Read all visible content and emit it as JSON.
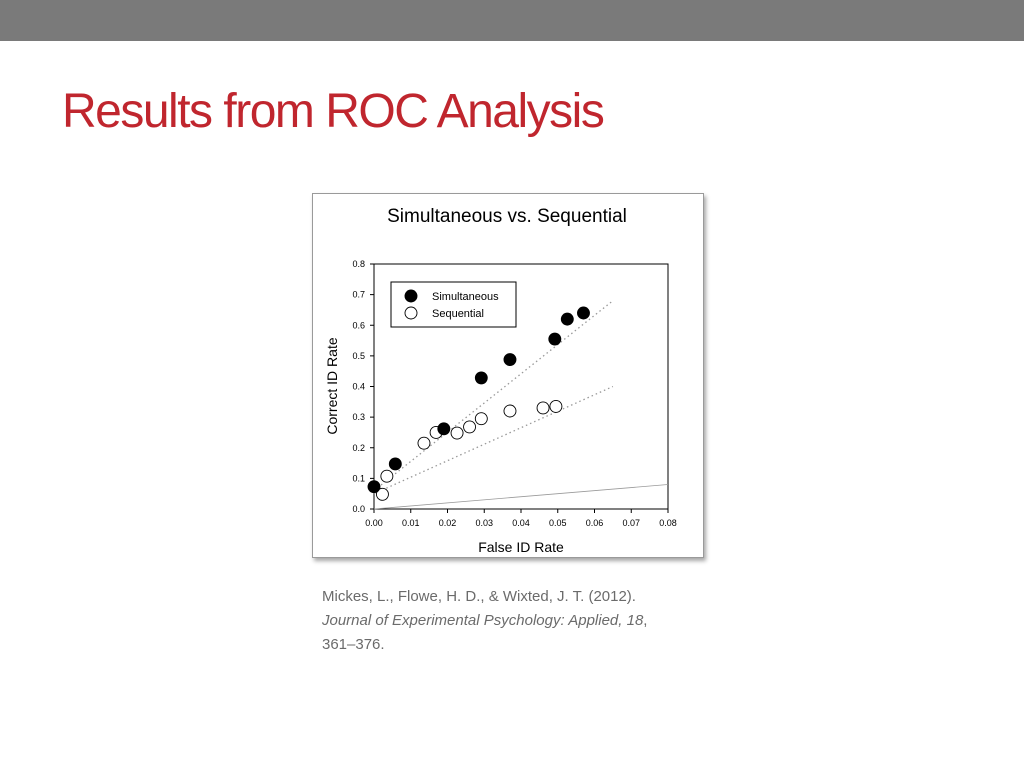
{
  "slide": {
    "title": "Results from ROC Analysis",
    "title_color": "#c0262e",
    "top_bar_color": "#7a7a7a"
  },
  "citation": {
    "authors": "Mickes, L., Flowe, H. D., & Wixted, J. T. (2012).",
    "journal": "Journal of Experimental Psychology: Applied, 18",
    "journal_suffix": ",",
    "pages": "361–376."
  },
  "chart_data": {
    "type": "scatter",
    "title": "Simultaneous vs. Sequential",
    "xlabel": "False ID Rate",
    "ylabel": "Correct ID Rate",
    "xlim": [
      0,
      0.08
    ],
    "ylim": [
      0,
      0.8
    ],
    "x_ticks": [
      "0.00",
      "0.01",
      "0.02",
      "0.03",
      "0.04",
      "0.05",
      "0.06",
      "0.07",
      "0.08"
    ],
    "y_ticks": [
      "0.0",
      "0.1",
      "0.2",
      "0.3",
      "0.4",
      "0.5",
      "0.6",
      "0.7",
      "0.8"
    ],
    "grid": false,
    "legend_position": "top-left",
    "series": [
      {
        "name": "Simultaneous",
        "marker": "filled-circle",
        "x": [
          0.0,
          0.0058,
          0.019,
          0.0292,
          0.037,
          0.0492,
          0.0526,
          0.057
        ],
        "y": [
          0.073,
          0.147,
          0.262,
          0.428,
          0.488,
          0.555,
          0.62,
          0.64
        ],
        "trend": {
          "x": [
            0.0,
            0.065
          ],
          "y": [
            0.06,
            0.68
          ]
        }
      },
      {
        "name": "Sequential",
        "marker": "open-circle",
        "x": [
          0.0023,
          0.0035,
          0.0136,
          0.0169,
          0.0226,
          0.026,
          0.0292,
          0.037,
          0.046,
          0.0495
        ],
        "y": [
          0.048,
          0.107,
          0.215,
          0.25,
          0.248,
          0.268,
          0.295,
          0.32,
          0.33,
          0.335
        ],
        "trend": {
          "x": [
            0.0,
            0.065
          ],
          "y": [
            0.05,
            0.4
          ]
        }
      }
    ],
    "chance_line": {
      "x": [
        0.0,
        0.08
      ],
      "y": [
        0.0,
        0.08
      ]
    }
  }
}
